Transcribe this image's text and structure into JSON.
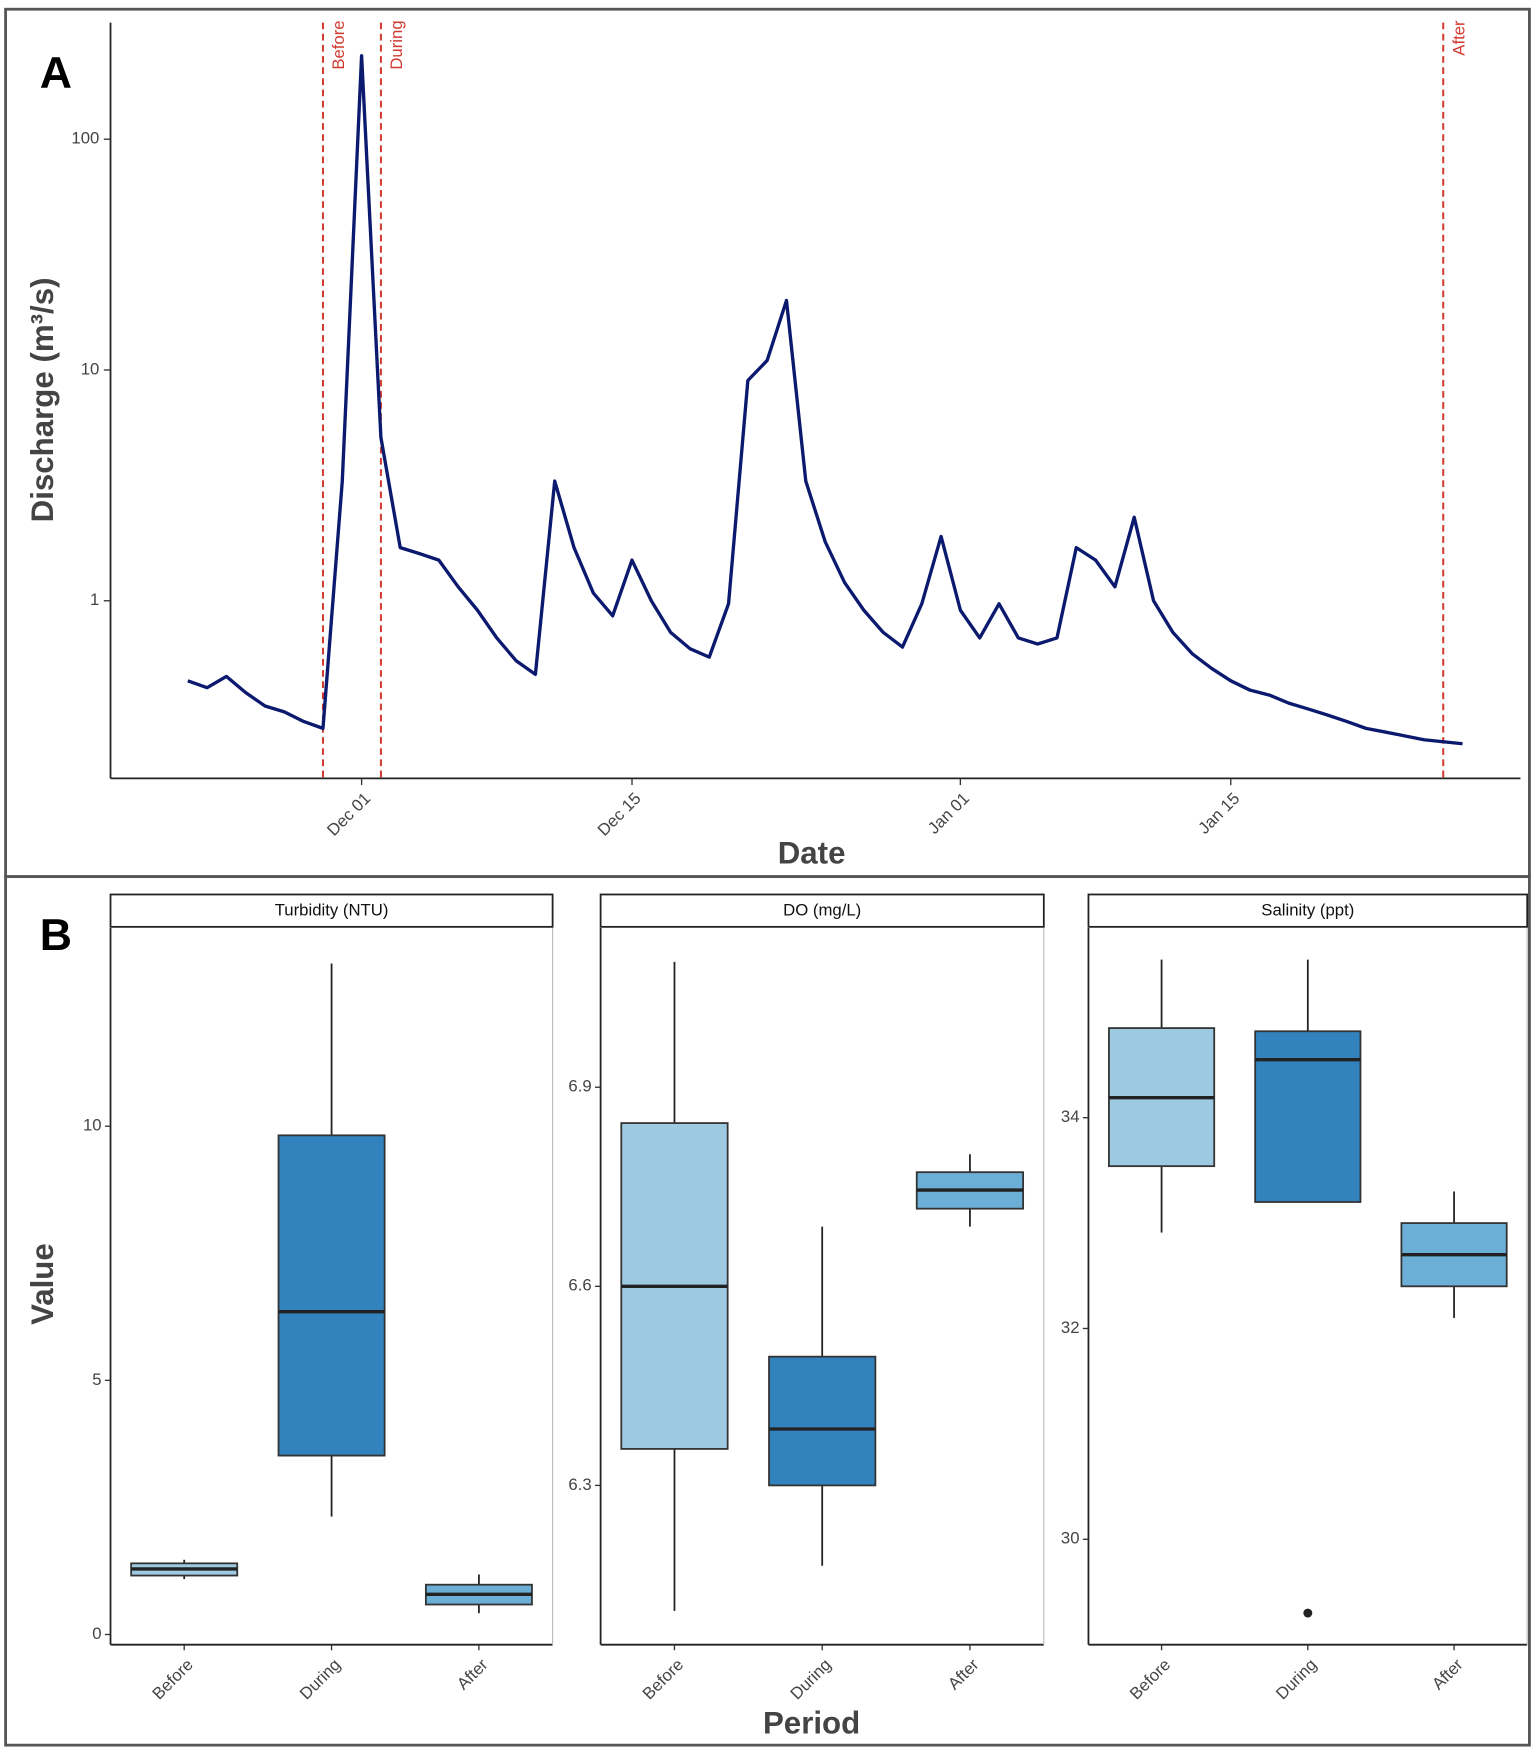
{
  "chart_data": [
    {
      "type": "line",
      "panel_label": "A",
      "x_label": "Date",
      "y_label": "Discharge (m³/s)",
      "log_y": true,
      "color": "#0b1a6e",
      "x": [
        "Nov 22",
        "Nov 23",
        "Nov 24",
        "Nov 25",
        "Nov 26",
        "Nov 27",
        "Nov 28",
        "Nov 29",
        "Nov 30",
        "Dec 01",
        "Dec 02",
        "Dec 03",
        "Dec 04",
        "Dec 05",
        "Dec 06",
        "Dec 07",
        "Dec 08",
        "Dec 09",
        "Dec 10",
        "Dec 11",
        "Dec 12",
        "Dec 13",
        "Dec 14",
        "Dec 15",
        "Dec 16",
        "Dec 17",
        "Dec 18",
        "Dec 19",
        "Dec 20",
        "Dec 21",
        "Dec 22",
        "Dec 23",
        "Dec 24",
        "Dec 25",
        "Dec 26",
        "Dec 27",
        "Dec 28",
        "Dec 29",
        "Dec 30",
        "Dec 31",
        "Jan 01",
        "Jan 02",
        "Jan 03",
        "Jan 04",
        "Jan 05",
        "Jan 06",
        "Jan 07",
        "Jan 08",
        "Jan 09",
        "Jan 10",
        "Jan 11",
        "Jan 12",
        "Jan 13",
        "Jan 14",
        "Jan 15",
        "Jan 16",
        "Jan 17",
        "Jan 18",
        "Jan 19",
        "Jan 20",
        "Jan 21",
        "Jan 22",
        "Jan 23",
        "Jan 24",
        "Jan 25",
        "Jan 26",
        "Jan 27"
      ],
      "values": [
        0.45,
        0.42,
        0.47,
        0.4,
        0.35,
        0.33,
        0.3,
        0.28,
        3.3,
        230,
        5.1,
        1.7,
        1.6,
        1.5,
        1.15,
        0.91,
        0.69,
        0.55,
        0.48,
        3.3,
        1.7,
        1.08,
        0.86,
        1.5,
        1.0,
        0.73,
        0.62,
        0.57,
        0.97,
        9,
        11,
        20,
        3.3,
        1.8,
        1.2,
        0.91,
        0.73,
        0.63,
        0.97,
        1.9,
        0.91,
        0.69,
        0.97,
        0.69,
        0.65,
        0.69,
        1.7,
        1.5,
        1.15,
        2.3,
        1.0,
        0.73,
        0.59,
        0.51,
        0.45,
        0.41,
        0.39,
        0.36,
        0.34,
        0.32,
        0.3,
        0.28,
        0.27,
        0.26,
        0.25,
        0.245,
        0.24
      ],
      "xlim": [
        "Nov 18",
        "Jan 30"
      ],
      "xticks": [
        "Dec 01",
        "Dec 15",
        "Jan 01",
        "Jan 15"
      ],
      "ylim": [
        0.17,
        320
      ],
      "yticks": [
        1,
        10,
        100
      ],
      "vline_color": "#d03a2f",
      "vlines": [
        {
          "x": "Nov 29",
          "label": "Before"
        },
        {
          "x": "Dec 02",
          "label": "During"
        },
        {
          "x": "Jan 26",
          "label": "After"
        }
      ]
    },
    {
      "type": "box",
      "panel_label": "B",
      "x_label": "Period",
      "y_label": "Value",
      "categories": [
        "Before",
        "During",
        "After"
      ],
      "colors": [
        "#9ecae1",
        "#3182bd",
        "#6baed6"
      ],
      "panels": [
        {
          "title": "Turbidity (NTU)",
          "ylim": [
            -0.2,
            13.9
          ],
          "yticks": [
            0,
            5,
            10
          ],
          "boxes": [
            {
              "min": 1.09,
              "q1": 1.16,
              "median": 1.29,
              "q3": 1.4,
              "max": 1.47,
              "outliers": []
            },
            {
              "min": 2.32,
              "q1": 3.52,
              "median": 6.35,
              "q3": 9.82,
              "max": 13.2,
              "outliers": []
            },
            {
              "min": 0.42,
              "q1": 0.59,
              "median": 0.79,
              "q3": 0.98,
              "max": 1.18,
              "outliers": []
            }
          ]
        },
        {
          "title": "DO (mg/L)",
          "ylim": [
            6.06,
            7.14
          ],
          "yticks": [
            6.3,
            6.6,
            6.9
          ],
          "boxes": [
            {
              "min": 6.111,
              "q1": 6.355,
              "median": 6.6,
              "q3": 6.846,
              "max": 7.089,
              "outliers": []
            },
            {
              "min": 6.179,
              "q1": 6.3,
              "median": 6.385,
              "q3": 6.494,
              "max": 6.69,
              "outliers": []
            },
            {
              "min": 6.69,
              "q1": 6.717,
              "median": 6.745,
              "q3": 6.772,
              "max": 6.799,
              "outliers": []
            }
          ]
        },
        {
          "title": "Salinity (ppt)",
          "ylim": [
            29.0,
            35.8
          ],
          "yticks": [
            30,
            32,
            34
          ],
          "boxes": [
            {
              "min": 32.91,
              "q1": 33.54,
              "median": 34.19,
              "q3": 34.85,
              "max": 35.5,
              "outliers": []
            },
            {
              "min": 33.2,
              "q1": 33.2,
              "median": 34.55,
              "q3": 34.82,
              "max": 35.5,
              "outliers": [
                29.3
              ]
            },
            {
              "min": 32.1,
              "q1": 32.4,
              "median": 32.7,
              "q3": 33.0,
              "max": 33.3,
              "outliers": []
            }
          ]
        }
      ]
    }
  ]
}
